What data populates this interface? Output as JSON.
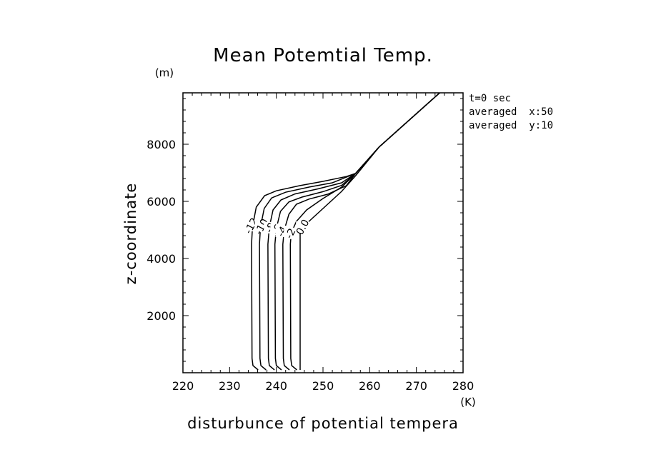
{
  "chart_data": {
    "type": "line",
    "title": "Mean Potemtial Temp.",
    "xlabel": "disturbunce of potential tempera",
    "ylabel": "z-coordinate",
    "x_unit": "(K)",
    "y_unit": "(m)",
    "xlim": [
      220,
      280
    ],
    "ylim": [
      0,
      9800
    ],
    "x_ticks": [
      220,
      230,
      240,
      250,
      260,
      270,
      280
    ],
    "y_ticks": [
      2000,
      4000,
      6000,
      8000
    ],
    "annotations": [
      "t=0 sec",
      "averaged  x:50",
      "averaged  y:10"
    ],
    "series": [
      {
        "name": "-12",
        "label": "-12",
        "label_at": [
          234.6,
          5150
        ],
        "points": [
          [
            236.1,
            100
          ],
          [
            235.0,
            250
          ],
          [
            234.8,
            500
          ],
          [
            234.7,
            4500
          ],
          [
            234.9,
            5100
          ],
          [
            235.7,
            5800
          ],
          [
            237.5,
            6200
          ],
          [
            240.0,
            6370
          ],
          [
            245.0,
            6550
          ],
          [
            250.0,
            6700
          ],
          [
            255.0,
            6870
          ],
          [
            257.0,
            6980
          ],
          [
            262.0,
            7900
          ],
          [
            275.0,
            9800
          ]
        ]
      },
      {
        "name": "-10",
        "label": "-10",
        "label_at": [
          236.8,
          5120
        ],
        "points": [
          [
            237.8,
            100
          ],
          [
            236.7,
            250
          ],
          [
            236.5,
            500
          ],
          [
            236.4,
            4500
          ],
          [
            236.6,
            5100
          ],
          [
            237.4,
            5750
          ],
          [
            239.0,
            6120
          ],
          [
            242.0,
            6320
          ],
          [
            247.0,
            6500
          ],
          [
            252.0,
            6650
          ],
          [
            257.0,
            6980
          ],
          [
            262.0,
            7900
          ],
          [
            275.0,
            9800
          ]
        ]
      },
      {
        "name": "-8",
        "label": "-8",
        "label_at": [
          238.7,
          5080
        ],
        "points": [
          [
            239.6,
            100
          ],
          [
            238.5,
            250
          ],
          [
            238.3,
            500
          ],
          [
            238.2,
            4500
          ],
          [
            238.5,
            5100
          ],
          [
            239.3,
            5700
          ],
          [
            241.0,
            6050
          ],
          [
            244.0,
            6260
          ],
          [
            249.0,
            6440
          ],
          [
            254.0,
            6650
          ],
          [
            257.0,
            6980
          ],
          [
            262.0,
            7900
          ],
          [
            275.0,
            9800
          ]
        ]
      },
      {
        "name": "-6",
        "label": "-6",
        "label_at": [
          240.1,
          5020
        ],
        "points": [
          [
            241.1,
            100
          ],
          [
            240.0,
            250
          ],
          [
            239.8,
            500
          ],
          [
            239.7,
            4500
          ],
          [
            240.0,
            5050
          ],
          [
            240.9,
            5650
          ],
          [
            242.7,
            5980
          ],
          [
            245.5,
            6150
          ],
          [
            250.0,
            6340
          ],
          [
            254.0,
            6560
          ],
          [
            257.0,
            6980
          ],
          [
            262.0,
            7900
          ],
          [
            275.0,
            9800
          ]
        ]
      },
      {
        "name": "-4",
        "label": "-4",
        "label_at": [
          241.2,
          4950
        ],
        "points": [
          [
            242.8,
            100
          ],
          [
            241.7,
            250
          ],
          [
            241.5,
            500
          ],
          [
            241.4,
            4500
          ],
          [
            241.7,
            5000
          ],
          [
            242.7,
            5550
          ],
          [
            244.3,
            5900
          ],
          [
            247.0,
            6080
          ],
          [
            251.0,
            6250
          ],
          [
            255.0,
            6550
          ],
          [
            257.0,
            6980
          ],
          [
            262.0,
            7900
          ],
          [
            275.0,
            9800
          ]
        ]
      },
      {
        "name": "-2",
        "label": "-2",
        "label_at": [
          243.0,
          4880
        ],
        "points": [
          [
            244.4,
            100
          ],
          [
            243.3,
            250
          ],
          [
            243.1,
            500
          ],
          [
            243.0,
            4500
          ],
          [
            243.2,
            4900
          ],
          [
            244.3,
            5300
          ],
          [
            246.5,
            5700
          ],
          [
            250.0,
            6100
          ],
          [
            254.0,
            6500
          ],
          [
            257.0,
            6980
          ],
          [
            262.0,
            7900
          ],
          [
            275.0,
            9800
          ]
        ]
      },
      {
        "name": "0",
        "label": "0.0",
        "label_at": [
          245.6,
          5100
        ],
        "points": [
          [
            245.1,
            100
          ],
          [
            245.1,
            4950
          ],
          [
            247.0,
            5300
          ],
          [
            250.0,
            5750
          ],
          [
            254.0,
            6350
          ],
          [
            257.0,
            6900
          ],
          [
            262.0,
            7900
          ],
          [
            275.0,
            9800
          ]
        ]
      }
    ]
  }
}
